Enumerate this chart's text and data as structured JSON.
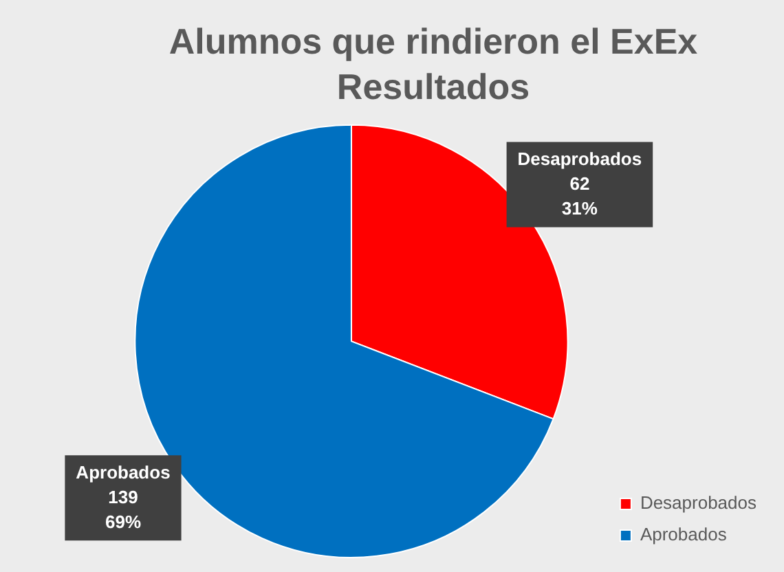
{
  "chart_data": {
    "type": "pie",
    "title": "Alumnos que rindieron el ExEx",
    "subtitle": "Resultados",
    "categories": [
      "Desaprobados",
      "Aprobados"
    ],
    "values": [
      62,
      139
    ],
    "colors": [
      "#ff0000",
      "#0070c0"
    ],
    "value_labels": [
      "62\n31%",
      "139\n69%"
    ],
    "legend": "bottom right"
  }
}
